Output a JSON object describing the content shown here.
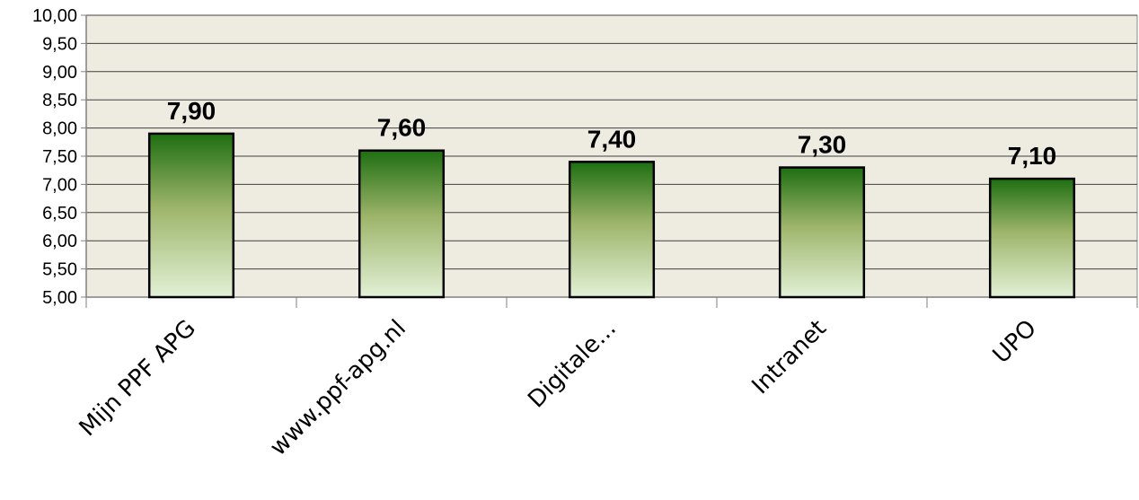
{
  "chart_data": {
    "type": "bar",
    "categories": [
      "Mijn PPF APG",
      "www.ppf-apg.nl",
      "Digitale...",
      "Intranet",
      "UPO"
    ],
    "values": [
      7.9,
      7.6,
      7.4,
      7.3,
      7.1
    ],
    "value_labels": [
      "7,90",
      "7,60",
      "7,40",
      "7,30",
      "7,10"
    ],
    "y_ticks": [
      "5,00",
      "5,50",
      "6,00",
      "6,50",
      "7,00",
      "7,50",
      "8,00",
      "8,50",
      "9,00",
      "9,50",
      "10,00"
    ],
    "ylim": [
      5,
      10
    ],
    "y_step": 0.5,
    "grid": true,
    "legend": "none",
    "title": "",
    "xlabel": "",
    "ylabel": "",
    "colors": {
      "plot_background": "#EEEBE0",
      "gridline": "#404040",
      "bar_top": "#1E6E12",
      "bar_mid": "#9DB46A",
      "bar_bottom": "#E2F1D6",
      "bar_border": "#000000"
    }
  }
}
